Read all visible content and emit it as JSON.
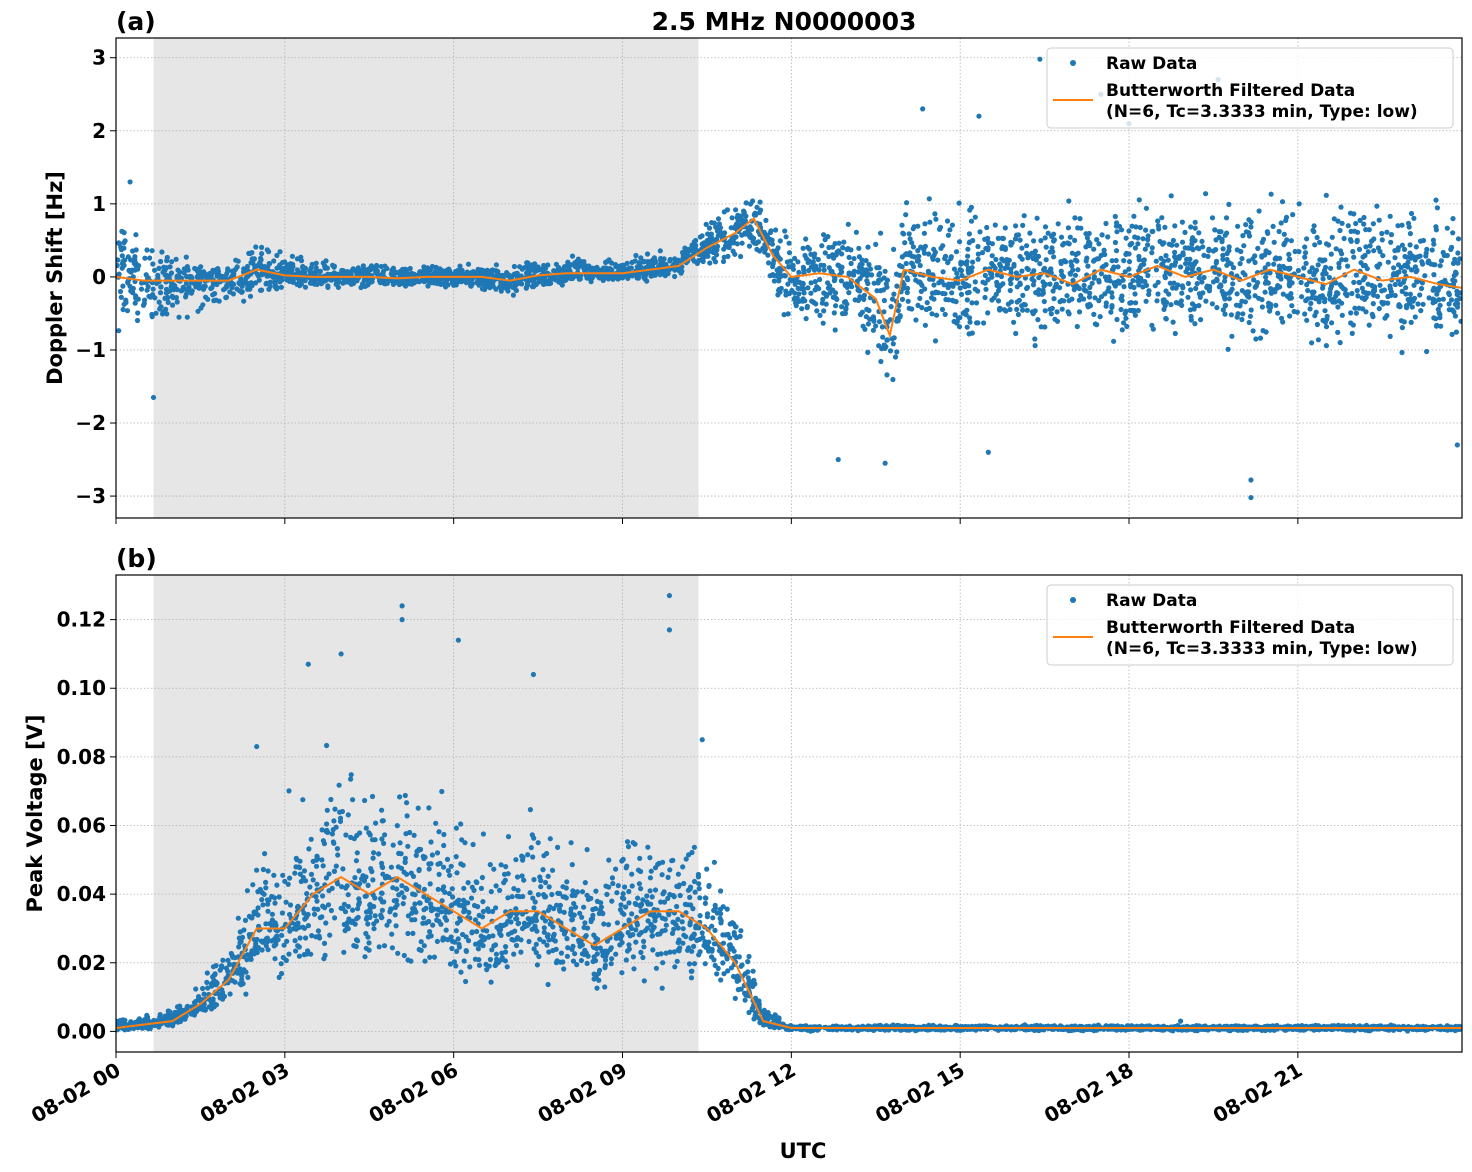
{
  "title": "2.5 MHz N0000003",
  "colors": {
    "raw": "#1f77b4",
    "filtered": "#ff7f0e",
    "shade": "#e6e6e6"
  },
  "chart_data": [
    {
      "type": "scatter",
      "panel_label": "(a)",
      "ylabel": "Doppler Shift [Hz]",
      "xlabel": "",
      "ylim": [
        -3.3,
        3.27
      ],
      "yticks": [
        3,
        2,
        1,
        0,
        -1,
        -2,
        -3
      ],
      "ytick_labels": [
        "3",
        "2",
        "1",
        "0",
        "−1",
        "−2",
        "−3"
      ],
      "grid": true,
      "legend_placement": "top-right",
      "legend": [
        "Raw Data",
        "Butterworth Filtered Data",
        "(N=6, Tc=3.3333 min, Type: low)"
      ],
      "shaded_span": [
        "08-02 00:40",
        "08-02 10:21"
      ],
      "x": [
        "08-02 00:00",
        "08-02 00:30",
        "08-02 01:00",
        "08-02 01:30",
        "08-02 02:00",
        "08-02 02:30",
        "08-02 03:00",
        "08-02 03:30",
        "08-02 04:00",
        "08-02 04:30",
        "08-02 05:00",
        "08-02 05:30",
        "08-02 06:00",
        "08-02 06:30",
        "08-02 07:00",
        "08-02 07:30",
        "08-02 08:00",
        "08-02 08:30",
        "08-02 09:00",
        "08-02 09:30",
        "08-02 10:00",
        "08-02 10:30",
        "08-02 11:00",
        "08-02 11:20",
        "08-02 11:40",
        "08-02 12:00",
        "08-02 12:30",
        "08-02 13:00",
        "08-02 13:30",
        "08-02 13:45",
        "08-02 14:00",
        "08-02 14:30",
        "08-02 15:00",
        "08-02 15:30",
        "08-02 16:00",
        "08-02 16:30",
        "08-02 17:00",
        "08-02 17:30",
        "08-02 18:00",
        "08-02 18:30",
        "08-02 19:00",
        "08-02 19:30",
        "08-02 20:00",
        "08-02 20:30",
        "08-02 21:00",
        "08-02 21:30",
        "08-02 22:00",
        "08-02 22:30",
        "08-02 23:00",
        "08-02 23:30",
        "08-02 23:55"
      ],
      "series": [
        {
          "name": "Butterworth Filtered Data",
          "kind": "line",
          "values": [
            0.0,
            -0.05,
            -0.05,
            -0.05,
            -0.05,
            0.1,
            0.02,
            0.0,
            0.0,
            0.0,
            -0.02,
            0.0,
            0.0,
            0.0,
            -0.05,
            0.02,
            0.05,
            0.05,
            0.05,
            0.1,
            0.15,
            0.4,
            0.6,
            0.8,
            0.3,
            0.0,
            0.05,
            0.0,
            -0.3,
            -0.8,
            0.1,
            0.0,
            -0.05,
            0.1,
            0.0,
            0.05,
            -0.1,
            0.1,
            0.0,
            0.15,
            0.0,
            0.1,
            -0.05,
            0.1,
            0.0,
            -0.1,
            0.1,
            -0.05,
            0.0,
            -0.1,
            -0.15
          ]
        },
        {
          "name": "Raw Data",
          "kind": "scatter_envelope",
          "low": [
            -1.0,
            -0.8,
            -0.7,
            -0.6,
            -0.5,
            -0.3,
            -0.2,
            -0.2,
            -0.2,
            -0.25,
            -0.2,
            -0.2,
            -0.2,
            -0.25,
            -0.35,
            -0.2,
            -0.2,
            -0.1,
            -0.1,
            -0.1,
            0.0,
            0.1,
            0.1,
            0.2,
            -0.3,
            -0.8,
            -0.9,
            -1.0,
            -1.5,
            -1.8,
            -1.0,
            -1.1,
            -1.1,
            -1.1,
            -1.1,
            -1.1,
            -1.1,
            -1.1,
            -1.1,
            -1.1,
            -1.1,
            -1.1,
            -1.2,
            -1.1,
            -1.1,
            -1.1,
            -1.1,
            -1.1,
            -1.1,
            -1.1,
            -1.1
          ],
          "high": [
            1.0,
            0.7,
            0.4,
            0.3,
            0.2,
            0.6,
            0.4,
            0.3,
            0.2,
            0.2,
            0.25,
            0.2,
            0.2,
            0.2,
            0.2,
            0.3,
            0.4,
            0.3,
            0.3,
            0.4,
            0.5,
            0.8,
            1.1,
            1.3,
            0.9,
            0.8,
            0.8,
            0.9,
            0.9,
            0.5,
            1.3,
            1.3,
            1.3,
            1.3,
            1.3,
            1.3,
            1.3,
            1.3,
            1.3,
            1.3,
            1.3,
            1.3,
            1.3,
            1.3,
            1.3,
            1.3,
            1.3,
            1.3,
            1.3,
            1.2,
            1.2
          ],
          "outliers": [
            [
              "08-02 00:15",
              1.3
            ],
            [
              "08-02 00:40",
              -1.65
            ],
            [
              "08-02 12:50",
              -2.5
            ],
            [
              "08-02 13:40",
              -2.55
            ],
            [
              "08-02 14:20",
              2.3
            ],
            [
              "08-02 15:20",
              2.2
            ],
            [
              "08-02 16:25",
              2.98
            ],
            [
              "08-02 17:30",
              2.5
            ],
            [
              "08-02 19:35",
              2.7
            ],
            [
              "08-02 20:10",
              -3.02
            ],
            [
              "08-02 20:10",
              -2.78
            ],
            [
              "08-02 23:50",
              -2.3
            ],
            [
              "08-02 15:30",
              -2.4
            ],
            [
              "08-02 18:00",
              2.1
            ]
          ]
        }
      ]
    },
    {
      "type": "scatter",
      "panel_label": "(b)",
      "ylabel": "Peak Voltage [V]",
      "xlabel": "UTC",
      "ylim": [
        -0.006,
        0.133
      ],
      "yticks": [
        0.12,
        0.1,
        0.08,
        0.06,
        0.04,
        0.02,
        0.0
      ],
      "ytick_labels": [
        "0.12",
        "0.10",
        "0.08",
        "0.06",
        "0.04",
        "0.02",
        "0.00"
      ],
      "xlim": [
        "08-02 00:00",
        "08-02 23:55"
      ],
      "xtick_labels": [
        "08-02 00",
        "08-02 03",
        "08-02 06",
        "08-02 09",
        "08-02 12",
        "08-02 15",
        "08-02 18",
        "08-02 21"
      ],
      "grid": true,
      "legend_placement": "top-right",
      "legend": [
        "Raw Data",
        "Butterworth Filtered Data",
        "(N=6, Tc=3.3333 min, Type: low)"
      ],
      "shaded_span": [
        "08-02 00:40",
        "08-02 10:21"
      ],
      "x": [
        "08-02 00:00",
        "08-02 00:30",
        "08-02 01:00",
        "08-02 01:30",
        "08-02 02:00",
        "08-02 02:30",
        "08-02 03:00",
        "08-02 03:30",
        "08-02 04:00",
        "08-02 04:30",
        "08-02 05:00",
        "08-02 05:30",
        "08-02 06:00",
        "08-02 06:30",
        "08-02 07:00",
        "08-02 07:30",
        "08-02 08:00",
        "08-02 08:30",
        "08-02 09:00",
        "08-02 09:30",
        "08-02 10:00",
        "08-02 10:30",
        "08-02 11:00",
        "08-02 11:30",
        "08-02 12:00",
        "08-02 13:00",
        "08-02 15:00",
        "08-02 18:00",
        "08-02 21:00",
        "08-02 23:55"
      ],
      "series": [
        {
          "name": "Butterworth Filtered Data",
          "kind": "line",
          "values": [
            0.001,
            0.002,
            0.003,
            0.008,
            0.015,
            0.03,
            0.03,
            0.04,
            0.045,
            0.04,
            0.045,
            0.04,
            0.035,
            0.03,
            0.035,
            0.035,
            0.03,
            0.025,
            0.03,
            0.035,
            0.035,
            0.03,
            0.02,
            0.003,
            0.001,
            0.001,
            0.001,
            0.001,
            0.001,
            0.001
          ]
        },
        {
          "name": "Raw Data",
          "kind": "scatter_envelope",
          "low": [
            0.0,
            0.0,
            0.001,
            0.003,
            0.005,
            0.01,
            0.01,
            0.012,
            0.015,
            0.012,
            0.015,
            0.012,
            0.01,
            0.01,
            0.01,
            0.01,
            0.008,
            0.008,
            0.008,
            0.01,
            0.01,
            0.01,
            0.005,
            0.001,
            0.0,
            0.0,
            0.0,
            0.0,
            0.0,
            0.0
          ],
          "high": [
            0.004,
            0.005,
            0.007,
            0.015,
            0.035,
            0.06,
            0.07,
            0.08,
            0.09,
            0.08,
            0.09,
            0.08,
            0.075,
            0.06,
            0.07,
            0.075,
            0.06,
            0.055,
            0.06,
            0.065,
            0.065,
            0.06,
            0.04,
            0.01,
            0.002,
            0.002,
            0.002,
            0.002,
            0.002,
            0.002
          ],
          "outliers": [
            [
              "08-02 05:05",
              0.124
            ],
            [
              "08-02 05:05",
              0.12
            ],
            [
              "08-02 09:50",
              0.127
            ],
            [
              "08-02 09:50",
              0.117
            ],
            [
              "08-02 03:25",
              0.107
            ],
            [
              "08-02 04:00",
              0.11
            ],
            [
              "08-02 07:25",
              0.104
            ],
            [
              "08-02 06:05",
              0.114
            ],
            [
              "08-02 02:30",
              0.083
            ],
            [
              "08-02 10:25",
              0.085
            ],
            [
              "08-02 18:55",
              0.003
            ]
          ]
        }
      ]
    }
  ]
}
